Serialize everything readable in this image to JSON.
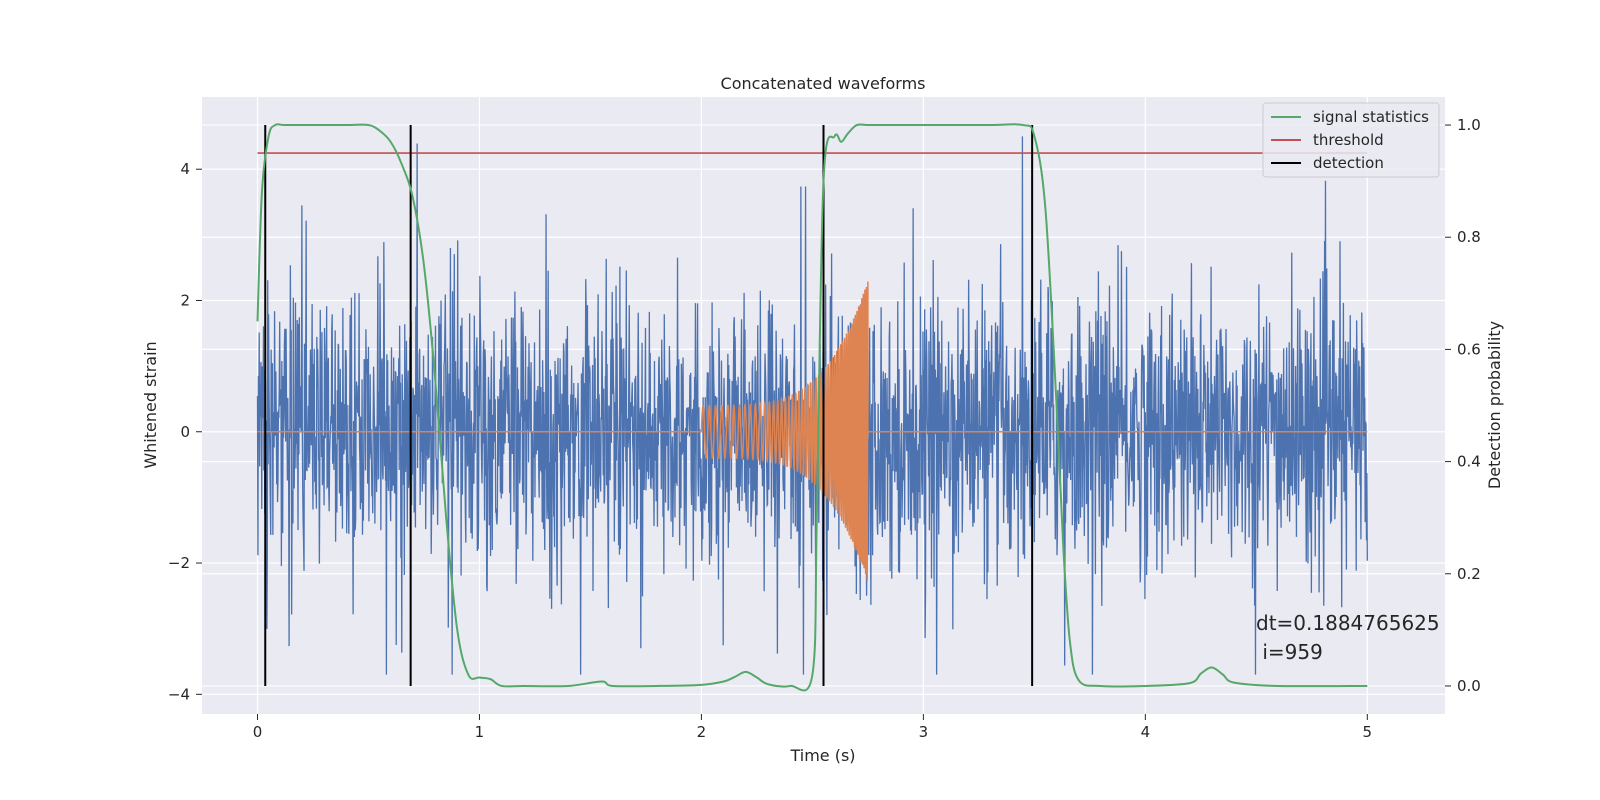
{
  "chart_data": {
    "type": "line",
    "title": "Concatenated waveforms",
    "xlabel": "Time (s)",
    "ylabel": "Whitened strain",
    "ylabel_right": "Detection probability",
    "xlim": [
      -0.25,
      5.35
    ],
    "ylim": [
      -4.3,
      5.1
    ],
    "ylim_right": [
      -0.05,
      1.05
    ],
    "xticks": [
      0,
      1,
      2,
      3,
      4,
      5
    ],
    "yticks": [
      -4,
      -2,
      0,
      2,
      4
    ],
    "yticks_right": [
      0.0,
      0.2,
      0.4,
      0.6,
      0.8,
      1.0
    ],
    "xtick_labels": [
      "0",
      "1",
      "2",
      "3",
      "4",
      "5"
    ],
    "ytick_labels": [
      "−4",
      "−2",
      "0",
      "2",
      "4"
    ],
    "ytick_right_labels": [
      "0.0",
      "0.2",
      "0.4",
      "0.6",
      "0.8",
      "1.0"
    ],
    "grid": true,
    "legend_position": "top-right",
    "colors": {
      "strain": "#4c72b0",
      "waveform": "#dd8452",
      "signal_statistics": "#55a868",
      "threshold": "#c44e52",
      "detection": "#000000",
      "background": "#eaeaf2",
      "grid": "#ffffff"
    },
    "series": [
      {
        "name": "signal statistics",
        "axis": "right",
        "x": [
          0.0,
          0.02,
          0.05,
          0.08,
          0.12,
          0.2,
          0.4,
          0.5,
          0.55,
          0.6,
          0.65,
          0.7,
          0.75,
          0.8,
          0.85,
          0.9,
          0.95,
          1.0,
          1.05,
          1.1,
          1.2,
          1.4,
          1.55,
          1.6,
          1.8,
          2.0,
          2.1,
          2.15,
          2.2,
          2.25,
          2.3,
          2.4,
          2.5,
          2.52,
          2.55,
          2.6,
          2.63,
          2.66,
          2.7,
          2.75,
          2.8,
          3.0,
          3.3,
          3.45,
          3.5,
          3.55,
          3.6,
          3.63,
          3.66,
          3.7,
          3.8,
          4.0,
          4.2,
          4.25,
          4.3,
          4.35,
          4.4,
          4.6,
          5.0
        ],
        "y": [
          0.65,
          0.88,
          0.98,
          1.0,
          1.0,
          1.0,
          1.0,
          1.0,
          0.99,
          0.97,
          0.93,
          0.87,
          0.75,
          0.55,
          0.3,
          0.1,
          0.02,
          0.015,
          0.012,
          0.0,
          0.0,
          0.0,
          0.008,
          0.0,
          0.0,
          0.002,
          0.008,
          0.016,
          0.025,
          0.015,
          0.003,
          0.0,
          0.02,
          0.3,
          0.9,
          0.98,
          0.97,
          0.985,
          1.0,
          1.0,
          1.0,
          1.0,
          1.0,
          1.0,
          0.98,
          0.85,
          0.5,
          0.25,
          0.08,
          0.01,
          0.0,
          0.0,
          0.005,
          0.022,
          0.033,
          0.02,
          0.006,
          0.0,
          0.0
        ]
      },
      {
        "name": "threshold",
        "axis": "right",
        "x": [
          0.0,
          5.0
        ],
        "y": [
          0.95,
          0.95
        ]
      },
      {
        "name": "detection",
        "axis": "right",
        "x": [
          0.035,
          0.69,
          2.55,
          3.49
        ],
        "y_range": [
          0.0,
          1.0
        ]
      },
      {
        "name": "",
        "axis": "left",
        "kind": "noise",
        "x_range": [
          0.0,
          5.0
        ],
        "envelope": 1.0,
        "y_range": [
          -3.7,
          4.5
        ]
      },
      {
        "name": "",
        "axis": "left",
        "kind": "chirp",
        "x_range": [
          2.0,
          2.75
        ],
        "amplitude_start": 0.4,
        "amplitude_end": 2.3,
        "frequency_start_hz": 35,
        "frequency_end_hz": 150
      }
    ],
    "annotations": [
      "dt=0.1884765625",
      " i=959"
    ]
  }
}
